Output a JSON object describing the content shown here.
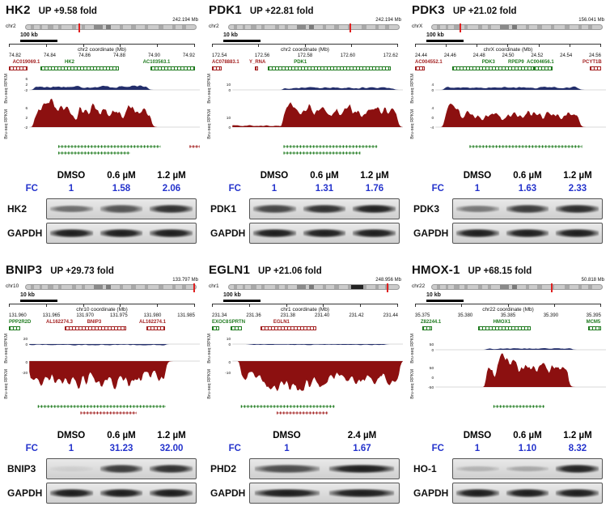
{
  "colors": {
    "gene_red": "#a32020",
    "gene_green": "#1e7a1e",
    "track_blue": "#232e6b",
    "track_red": "#8c1010",
    "fc_blue": "#2433cc",
    "marker": "#e02020"
  },
  "ylabel": "Bru-seq RPKM",
  "panels": [
    {
      "id": "hk2",
      "gene": "HK2",
      "fold": "UP +9.58 fold",
      "chrom": "chr2",
      "chrom_size": "242.194 Mb",
      "scale": "100 kb",
      "axis_title": "chr2 coordinate (Mb)",
      "axis_ticks": [
        "74.82",
        "74.84",
        "74.86",
        "74.88",
        "74.90",
        "74.92"
      ],
      "marker": 0.31,
      "genes": [
        {
          "name": "AC019069.1",
          "color": "red",
          "lx": 0.02,
          "bx": 0.0,
          "bw": 0.1
        },
        {
          "name": "HK2",
          "color": "green",
          "lx": 0.3,
          "bx": 0.17,
          "bw": 0.42
        },
        {
          "name": "AC103563.1",
          "color": "green",
          "lx": 0.72,
          "bx": 0.76,
          "bw": 0.24
        }
      ],
      "t1": {
        "ticks": [
          "6",
          "2",
          "-2"
        ],
        "regions": [
          [
            0.03,
            0.7,
            0.55
          ]
        ]
      },
      "t2": {
        "ticks": [
          "6",
          "2",
          "-2"
        ],
        "dir": "up",
        "regions": [
          [
            0.03,
            0.72,
            0.95
          ],
          [
            0.05,
            0.16,
            1.15
          ]
        ]
      },
      "bottom": [
        {
          "x": 0.17,
          "w": 0.6,
          "color": "green",
          "row": 0
        },
        {
          "x": 0.94,
          "w": 0.06,
          "color": "red",
          "row": 0
        },
        {
          "x": 0.17,
          "w": 0.42,
          "color": "green",
          "row": 1
        }
      ],
      "blot": {
        "doses": [
          "DMSO",
          "0.6 µM",
          "1.2 µM"
        ],
        "fc_label": "FC",
        "fc": [
          "1",
          "1.58",
          "2.06"
        ],
        "rows": [
          {
            "label": "HK2",
            "bands": [
              0.55,
              0.68,
              0.85
            ]
          },
          {
            "label": "GAPDH",
            "bands": [
              0.95,
              0.95,
              0.95
            ]
          }
        ]
      }
    },
    {
      "id": "pdk1",
      "gene": "PDK1",
      "fold": "UP +22.81 fold",
      "chrom": "chr2",
      "chrom_size": "242.194 Mb",
      "scale": "10 kb",
      "axis_title": "chr2 coordinate (Mb)",
      "axis_ticks": [
        "172.54",
        "172.56",
        "172.58",
        "172.60",
        "172.62"
      ],
      "marker": 0.71,
      "genes": [
        {
          "name": "AC078883.1",
          "color": "red",
          "lx": 0.0,
          "bx": 0.0,
          "bw": 0.05
        },
        {
          "name": "Y_RNA",
          "color": "red",
          "lx": 0.2,
          "bx": 0.23,
          "bw": 0.02
        },
        {
          "name": "PDK1",
          "color": "green",
          "lx": 0.44,
          "bx": 0.3,
          "bw": 0.66
        }
      ],
      "t1": {
        "ticks": [
          "10",
          "0"
        ],
        "regions": [
          [
            0.3,
            0.95,
            0.35
          ]
        ]
      },
      "t2": {
        "ticks": [
          "10",
          "0"
        ],
        "dir": "up",
        "regions": [
          [
            0.3,
            0.97,
            1.0
          ],
          [
            0.0,
            0.28,
            0.08
          ]
        ]
      },
      "bottom": [
        {
          "x": 0.3,
          "w": 0.55,
          "color": "green",
          "row": 0
        },
        {
          "x": 0.3,
          "w": 0.45,
          "color": "green",
          "row": 1
        }
      ],
      "blot": {
        "doses": [
          "DMSO",
          "0.6 µM",
          "1.2 µM"
        ],
        "fc_label": "FC",
        "fc": [
          "1",
          "1.31",
          "1.76"
        ],
        "rows": [
          {
            "label": "PDK1",
            "bands": [
              0.75,
              0.85,
              0.93
            ]
          },
          {
            "label": "GAPDH",
            "bands": [
              0.95,
              0.95,
              0.95
            ]
          }
        ]
      }
    },
    {
      "id": "pdk3",
      "gene": "PDK3",
      "fold": "UP +21.02 fold",
      "chrom": "chrX",
      "chrom_size": "156.041 Mb",
      "scale": "100 kb",
      "axis_title": "chrX coordinate (Mb)",
      "axis_ticks": [
        "24.44",
        "24.46",
        "24.48",
        "24.50",
        "24.52",
        "24.54",
        "24.56"
      ],
      "marker": 0.16,
      "genes": [
        {
          "name": "AC004552.1",
          "color": "red",
          "lx": 0.0,
          "bx": 0.0,
          "bw": 0.05
        },
        {
          "name": "PDK3",
          "color": "green",
          "lx": 0.36,
          "bx": 0.2,
          "bw": 0.44
        },
        {
          "name": "RPEP9",
          "color": "green",
          "lx": 0.5
        },
        {
          "name": "AC004656.1",
          "color": "green",
          "lx": 0.6,
          "bx": 0.64,
          "bw": 0.1
        },
        {
          "name": "PCYT1B",
          "color": "red",
          "lx": 0.9,
          "bx": 0.94,
          "bw": 0.06
        }
      ],
      "t1": {
        "ticks": [
          "4",
          "0"
        ],
        "regions": [
          [
            0.05,
            0.85,
            0.4
          ]
        ]
      },
      "t2": {
        "ticks": [
          "4",
          "0",
          "-4"
        ],
        "dir": "up",
        "regions": [
          [
            0.05,
            0.85,
            0.7
          ],
          [
            0.06,
            0.14,
            1.3
          ]
        ]
      },
      "bottom": [
        {
          "x": 0.2,
          "w": 0.66,
          "color": "green",
          "row": 0
        }
      ],
      "blot": {
        "doses": [
          "DMSO",
          "0.6 µM",
          "1.2 µM"
        ],
        "fc_label": "FC",
        "fc": [
          "1",
          "1.63",
          "2.33"
        ],
        "rows": [
          {
            "label": "PDK3",
            "bands": [
              0.5,
              0.8,
              0.88
            ]
          },
          {
            "label": "GAPDH",
            "bands": [
              0.95,
              0.95,
              0.95
            ]
          }
        ]
      }
    },
    {
      "id": "bnip3",
      "gene": "BNIP3",
      "fold": "UP +29.73 fold",
      "chrom": "chr10",
      "chrom_size": "133.797 Mb",
      "scale": "10 kb",
      "axis_title": "chr10 coordinate (Mb)",
      "axis_ticks": [
        "131.960",
        "131.965",
        "131.970",
        "131.975",
        "131.980",
        "131.985"
      ],
      "marker": 0.985,
      "genes": [
        {
          "name": "PPP2R2D",
          "color": "green",
          "lx": 0.0,
          "bx": 0.0,
          "bw": 0.06
        },
        {
          "name": "AL162274.3",
          "color": "red",
          "lx": 0.2
        },
        {
          "name": "BNIP3",
          "color": "red",
          "lx": 0.42,
          "bx": 0.3,
          "bw": 0.33
        },
        {
          "name": "AL162274.1",
          "color": "red",
          "lx": 0.7,
          "bx": 0.74,
          "bw": 0.1
        }
      ],
      "t1": {
        "ticks": [
          "20",
          "0"
        ],
        "regions": [
          [
            0.0,
            0.8,
            0.15
          ]
        ]
      },
      "t2": {
        "ticks": [
          "0",
          "-20"
        ],
        "dir": "down",
        "regions": [
          [
            0.0,
            0.8,
            0.95
          ]
        ]
      },
      "bottom": [
        {
          "x": 0.05,
          "w": 0.75,
          "color": "green",
          "row": 0
        },
        {
          "x": 0.3,
          "w": 0.33,
          "color": "red",
          "row": 1
        }
      ],
      "blot": {
        "doses": [
          "DMSO",
          "0.6 µM",
          "1.2 µM"
        ],
        "fc_label": "FC",
        "fc": [
          "1",
          "31.23",
          "32.00"
        ],
        "rows": [
          {
            "label": "BNIP3",
            "bands": [
              0.07,
              0.8,
              0.85
            ]
          },
          {
            "label": "GAPDH",
            "bands": [
              0.95,
              0.95,
              0.95
            ]
          }
        ]
      }
    },
    {
      "id": "egln1",
      "gene": "EGLN1",
      "fold": "UP +21.06 fold",
      "chrom": "chr1",
      "chrom_size": "248.956 Mb",
      "scale": "100 kb",
      "axis_title": "chr1 coordinate (Mb)",
      "axis_ticks": [
        "231.34",
        "231.36",
        "231.38",
        "231.40",
        "231.42",
        "231.44"
      ],
      "marker": 0.93,
      "ideo_dark": [
        0.72,
        0.07
      ],
      "genes": [
        {
          "name": "EXOC8",
          "color": "green",
          "lx": 0.0,
          "bx": 0.0,
          "bw": 0.04
        },
        {
          "name": "SPRTN",
          "color": "green",
          "lx": 0.09,
          "bx": 0.1,
          "bw": 0.06
        },
        {
          "name": "EGLN1",
          "color": "red",
          "lx": 0.33,
          "bx": 0.26,
          "bw": 0.3
        }
      ],
      "t1": {
        "ticks": [
          "10",
          "0"
        ],
        "regions": [
          [
            0.1,
            0.9,
            0.12
          ]
        ]
      },
      "t2": {
        "ticks": [
          "0",
          "-10"
        ],
        "dir": "down",
        "regions": [
          [
            0.05,
            0.98,
            0.8
          ],
          [
            0.2,
            0.55,
            1.15
          ]
        ]
      },
      "bottom": [
        {
          "x": 0.05,
          "w": 0.55,
          "color": "green",
          "row": 0
        },
        {
          "x": 0.26,
          "w": 0.3,
          "color": "red",
          "row": 1
        }
      ],
      "blot": {
        "doses": [
          "DMSO",
          "2.4 µM"
        ],
        "fc_label": "FC",
        "fc": [
          "1",
          "1.67"
        ],
        "rows": [
          {
            "label": "PHD2",
            "bands": [
              0.72,
              0.95
            ]
          },
          {
            "label": "GAPDH",
            "bands": [
              0.95,
              0.95
            ]
          }
        ]
      }
    },
    {
      "id": "hmox1",
      "gene": "HMOX-1",
      "fold": "UP +68.15 fold",
      "chrom": "chr22",
      "chrom_size": "50.818 Mb",
      "scale": "10 kb",
      "axis_title": "chr22 coordinate (Mb)",
      "axis_ticks": [
        "35.375",
        "35.380",
        "35.385",
        "35.390",
        "35.395"
      ],
      "marker": 0.7,
      "genes": [
        {
          "name": "Z82244.1",
          "color": "green",
          "lx": 0.03,
          "bx": 0.04,
          "bw": 0.05
        },
        {
          "name": "HMOX1",
          "color": "green",
          "lx": 0.42,
          "bx": 0.34,
          "bw": 0.28
        },
        {
          "name": "MCM5",
          "color": "green",
          "lx": 0.92,
          "bx": 0.93,
          "bw": 0.07
        }
      ],
      "t1": {
        "ticks": [
          "50",
          "0"
        ],
        "regions": [
          [
            0.3,
            0.8,
            0.2
          ]
        ]
      },
      "t2": {
        "ticks": [
          "50",
          "0",
          "-50"
        ],
        "dir": "up",
        "regions": [
          [
            0.3,
            0.78,
            1.0
          ],
          [
            0.36,
            0.48,
            1.3
          ]
        ]
      },
      "bottom": [
        {
          "x": 0.34,
          "w": 0.3,
          "color": "green",
          "row": 0
        }
      ],
      "blot": {
        "doses": [
          "DMSO",
          "0.6 µM",
          "1.2 µM"
        ],
        "fc_label": "FC",
        "fc": [
          "1",
          "1.10",
          "8.32"
        ],
        "rows": [
          {
            "label": "HO-1",
            "bands": [
              0.2,
              0.25,
              0.92
            ]
          },
          {
            "label": "GAPDH",
            "bands": [
              0.95,
              0.95,
              0.95
            ]
          }
        ]
      }
    }
  ]
}
